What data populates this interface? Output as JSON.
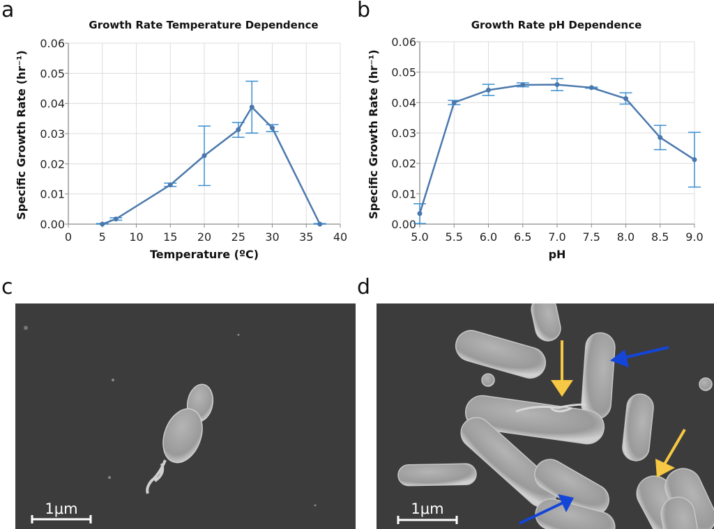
{
  "panels": {
    "a": "a",
    "b": "b",
    "c": "c",
    "d": "d"
  },
  "micrographs": {
    "c": {
      "scale_bar": "1μm",
      "background": "#3c3c3c"
    },
    "d": {
      "scale_bar": "1μm",
      "background": "#3c3c3c",
      "arrow_colors": {
        "yellow": "#f7c843",
        "blue": "#1346d8"
      }
    }
  },
  "colors": {
    "line": "#4a78ad",
    "error_bar": "#3a8fd0",
    "grid": "#dcdcdc",
    "axis": "#8a8a8a"
  },
  "chart_data": [
    {
      "type": "line",
      "title": "Growth Rate Temperature Dependence",
      "xlabel": "Temperature (ºC)",
      "ylabel": "Specific Growth Rate (hr⁻¹)",
      "xlim": [
        0,
        40
      ],
      "ylim": [
        0,
        0.06
      ],
      "grid": true,
      "xticks": [
        "0",
        "5",
        "10",
        "15",
        "20",
        "25",
        "30",
        "35",
        "40"
      ],
      "xtick_values": [
        0,
        5,
        10,
        15,
        20,
        25,
        30,
        35,
        40
      ],
      "yticks": [
        "0.00",
        "0.01",
        "0.02",
        "0.03",
        "0.04",
        "0.05",
        "0.06"
      ],
      "ytick_values": [
        0,
        0.01,
        0.02,
        0.03,
        0.04,
        0.05,
        0.06
      ],
      "x": [
        5,
        7,
        15,
        20,
        25,
        27,
        30,
        37
      ],
      "y": [
        0.0,
        0.0017,
        0.013,
        0.0227,
        0.0313,
        0.0388,
        0.0319,
        0.0
      ],
      "err_low": [
        -0.0002,
        0.0013,
        0.0125,
        0.0128,
        0.0288,
        0.0302,
        0.0307,
        -0.0002
      ],
      "err_high": [
        0.0002,
        0.0021,
        0.0136,
        0.0325,
        0.0337,
        0.0474,
        0.033,
        0.0002
      ]
    },
    {
      "type": "line",
      "title": "Growth Rate pH Dependence",
      "xlabel": "pH",
      "ylabel": "Specific Growth Rate (hr⁻¹)",
      "xlim": [
        5.0,
        9.0
      ],
      "ylim": [
        0,
        0.06
      ],
      "grid": true,
      "xticks": [
        "5.0",
        "5.5",
        "6.0",
        "6.5",
        "7.0",
        "7.5",
        "8.0",
        "8.5",
        "9.0"
      ],
      "xtick_values": [
        5.0,
        5.5,
        6.0,
        6.5,
        7.0,
        7.5,
        8.0,
        8.5,
        9.0
      ],
      "yticks": [
        "0.00",
        "0.01",
        "0.02",
        "0.03",
        "0.04",
        "0.05",
        "0.06"
      ],
      "ytick_values": [
        0,
        0.01,
        0.02,
        0.03,
        0.04,
        0.05,
        0.06
      ],
      "x": [
        5.0,
        5.5,
        6.0,
        6.5,
        7.0,
        7.5,
        8.0,
        8.5,
        9.0
      ],
      "y": [
        0.0035,
        0.04,
        0.0441,
        0.0458,
        0.0459,
        0.0449,
        0.0413,
        0.0285,
        0.0212
      ],
      "err_low": [
        0.0002,
        0.0393,
        0.0423,
        0.0452,
        0.0439,
        0.0447,
        0.0395,
        0.0245,
        0.0122
      ],
      "err_high": [
        0.0067,
        0.0407,
        0.046,
        0.0465,
        0.0479,
        0.0451,
        0.0432,
        0.0325,
        0.0302
      ]
    }
  ]
}
